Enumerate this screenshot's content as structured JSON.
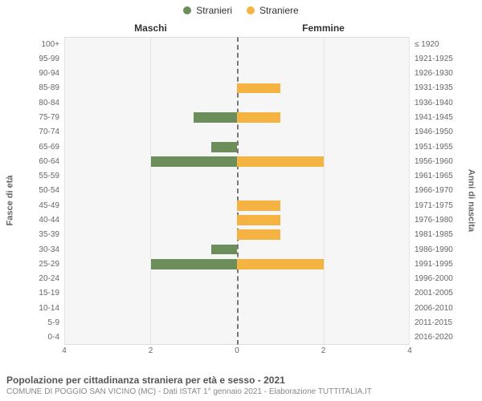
{
  "legend": {
    "male": "Stranieri",
    "female": "Straniere"
  },
  "panel_titles": {
    "male": "Maschi",
    "female": "Femmine"
  },
  "axis_labels": {
    "left": "Fasce di età",
    "right": "Anni di nascita"
  },
  "colors": {
    "male": "#6b8e5a",
    "female": "#f5b342",
    "plot_bg": "#f6f6f6",
    "grid": "#e5e5e5",
    "axis_line": "#dddddd",
    "divider": "#777777"
  },
  "chart": {
    "type": "population-pyramid",
    "x_max": 4,
    "x_ticks": [
      4,
      2,
      0,
      0,
      2,
      4
    ],
    "age_labels": [
      "100+",
      "95-99",
      "90-94",
      "85-89",
      "80-84",
      "75-79",
      "70-74",
      "65-69",
      "60-64",
      "55-59",
      "50-54",
      "45-49",
      "40-44",
      "35-39",
      "30-34",
      "25-29",
      "20-24",
      "15-19",
      "10-14",
      "5-9",
      "0-4"
    ],
    "year_labels": [
      "≤ 1920",
      "1921-1925",
      "1926-1930",
      "1931-1935",
      "1936-1940",
      "1941-1945",
      "1946-1950",
      "1951-1955",
      "1956-1960",
      "1961-1965",
      "1966-1970",
      "1971-1975",
      "1976-1980",
      "1981-1985",
      "1986-1990",
      "1991-1995",
      "1996-2000",
      "2001-2005",
      "2006-2010",
      "2011-2015",
      "2016-2020"
    ],
    "male": [
      0,
      0,
      0,
      0,
      0,
      1,
      0,
      0.6,
      2,
      0,
      0,
      0,
      0,
      0,
      0.6,
      2,
      0,
      0,
      0,
      0,
      0
    ],
    "female": [
      0,
      0,
      0,
      1,
      0,
      1,
      0,
      0,
      2,
      0,
      0,
      1,
      1,
      1,
      0,
      2,
      0,
      0,
      0,
      0,
      0
    ]
  },
  "footer": {
    "title": "Popolazione per cittadinanza straniera per età e sesso - 2021",
    "subtitle": "COMUNE DI POGGIO SAN VICINO (MC) - Dati ISTAT 1° gennaio 2021 - Elaborazione TUTTITALIA.IT"
  }
}
